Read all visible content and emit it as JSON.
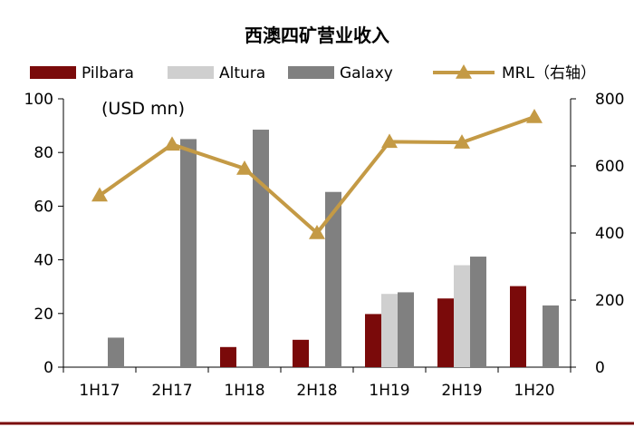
{
  "chart_data": {
    "type": "bar",
    "title": "西澳四矿营业收入",
    "unit_label": "(USD mn)",
    "categories": [
      "1H17",
      "2H17",
      "1H18",
      "2H18",
      "1H19",
      "2H19",
      "1H20"
    ],
    "series": [
      {
        "name": "Pilbara",
        "color": "#7a0a0a",
        "values": [
          0,
          0,
          7.5,
          10.2,
          19.8,
          25.6,
          30.2
        ]
      },
      {
        "name": "Altura",
        "color": "#cfcfcf",
        "values": [
          0,
          0,
          0,
          0,
          27.3,
          38.0,
          0
        ]
      },
      {
        "name": "Galaxy",
        "color": "#808080",
        "values": [
          11.0,
          85.0,
          88.5,
          65.3,
          27.9,
          41.2,
          23.0
        ]
      }
    ],
    "line_series": {
      "name": "MRL（右轴）",
      "axis": "right",
      "color": "#c49a45",
      "values": [
        512,
        664,
        592,
        400,
        672,
        670,
        746
      ]
    },
    "ylim_left": [
      0,
      100
    ],
    "yticks_left": [
      "0",
      "20",
      "40",
      "60",
      "80",
      "100"
    ],
    "ylim_right": [
      0,
      800
    ],
    "yticks_right": [
      "0",
      "200",
      "400",
      "600",
      "800"
    ],
    "legend_position": "top"
  }
}
